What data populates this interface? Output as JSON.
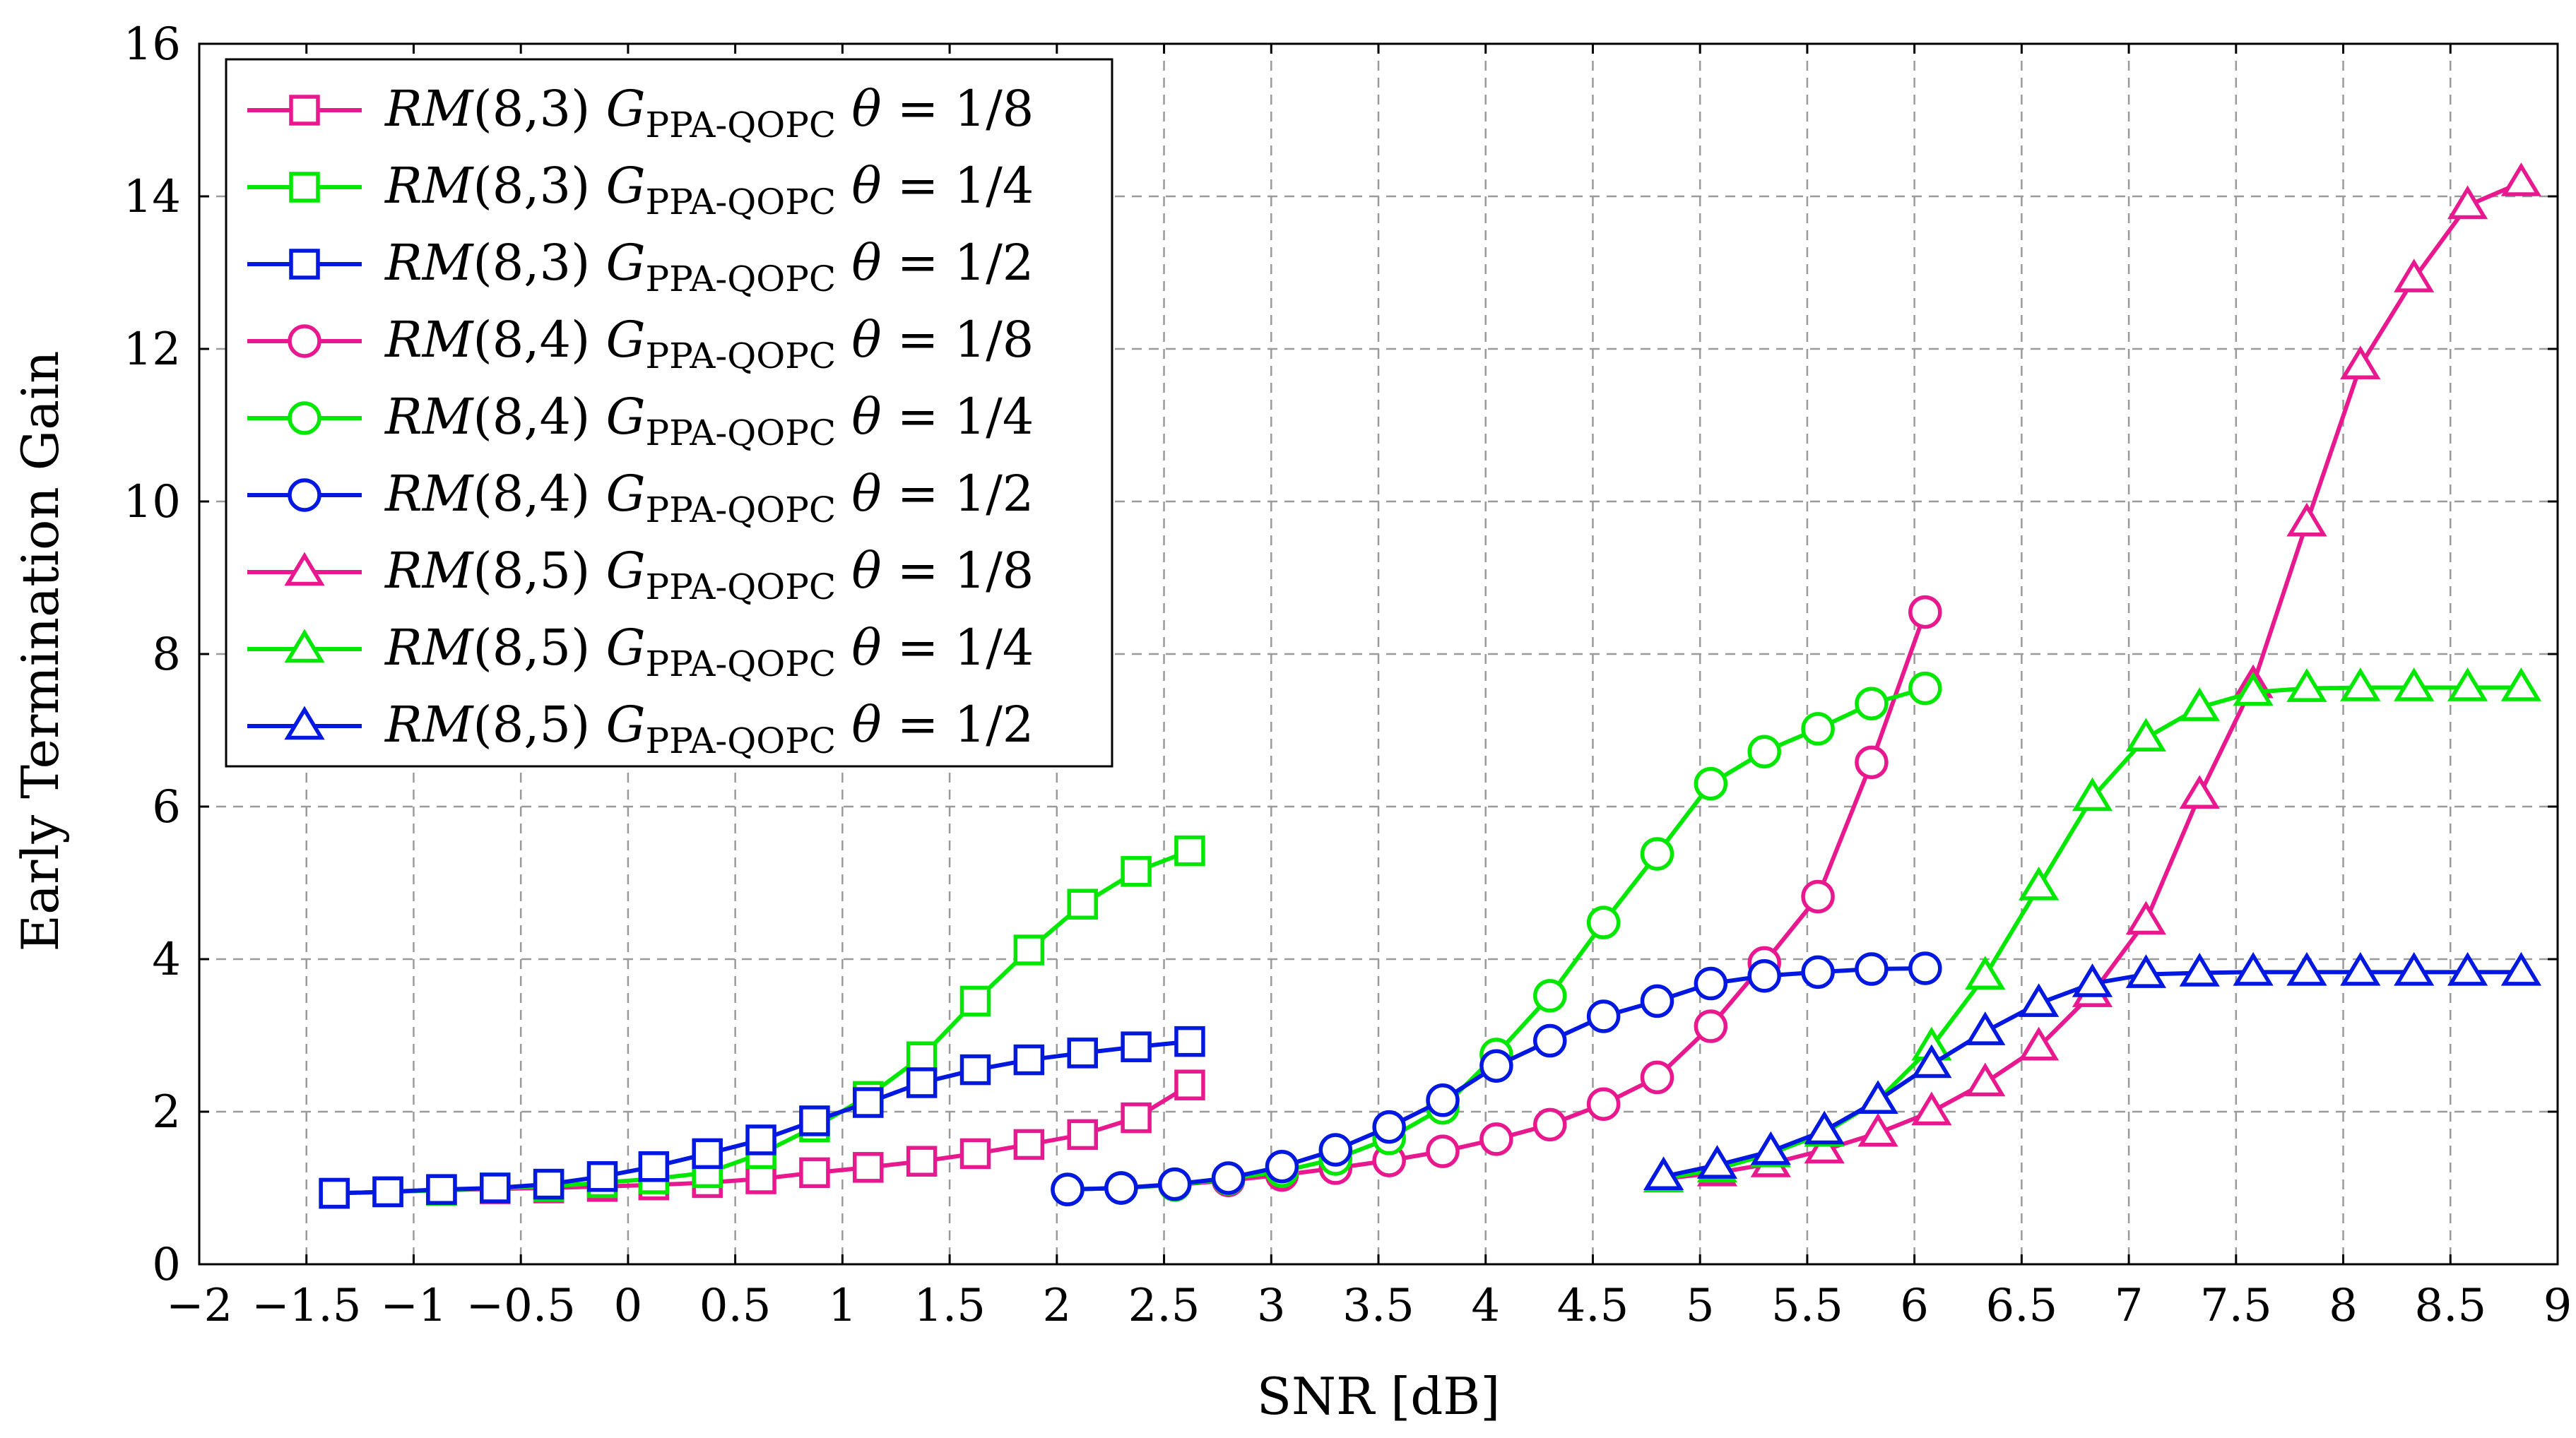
{
  "chart_data": {
    "type": "line",
    "title": "",
    "xlabel": "SNR [dB]",
    "ylabel": "Early Termination Gain",
    "xlim": [
      -2,
      9
    ],
    "ylim": [
      0,
      16
    ],
    "xticks": [
      -2,
      -1.5,
      -1,
      -0.5,
      0,
      0.5,
      1,
      1.5,
      2,
      2.5,
      3,
      3.5,
      4,
      4.5,
      5,
      5.5,
      6,
      6.5,
      7,
      7.5,
      8,
      8.5,
      9
    ],
    "xtick_labels": [
      "−2",
      "−1.5",
      "−1",
      "−0.5",
      "0",
      "0.5",
      "1",
      "1.5",
      "2",
      "2.5",
      "3",
      "3.5",
      "4",
      "4.5",
      "5",
      "5.5",
      "6",
      "6.5",
      "7",
      "7.5",
      "8",
      "8.5",
      "9"
    ],
    "yticks": [
      0,
      2,
      4,
      6,
      8,
      10,
      12,
      14,
      16
    ],
    "ytick_labels": [
      "0",
      "2",
      "4",
      "6",
      "8",
      "10",
      "12",
      "14",
      "16"
    ],
    "grid": true,
    "legend_position": "top-left",
    "colors": {
      "pink": "#e8188f",
      "green": "#00e800",
      "blue": "#0018e0"
    },
    "series": [
      {
        "name": "RM(8,3) G_PPA-QOPC θ = 1/8",
        "code": "(8,3)",
        "theta": "1/8",
        "color": "#e8188f",
        "marker": "square",
        "x": [
          -1.37,
          -1.12,
          -0.87,
          -0.62,
          -0.37,
          -0.12,
          0.12,
          0.37,
          0.62,
          0.87,
          1.12,
          1.37,
          1.62,
          1.87,
          2.12,
          2.37,
          2.62
        ],
        "y": [
          0.93,
          0.95,
          0.97,
          0.99,
          1.0,
          1.02,
          1.04,
          1.07,
          1.12,
          1.2,
          1.27,
          1.35,
          1.45,
          1.57,
          1.7,
          1.92,
          2.35
        ]
      },
      {
        "name": "RM(8,3) G_PPA-QOPC θ = 1/4",
        "code": "(8,3)",
        "theta": "1/4",
        "color": "#00e800",
        "marker": "square",
        "x": [
          -1.37,
          -1.12,
          -0.87,
          -0.62,
          -0.37,
          -0.12,
          0.12,
          0.37,
          0.62,
          0.87,
          1.12,
          1.37,
          1.62,
          1.87,
          2.12,
          2.37,
          2.62
        ],
        "y": [
          0.93,
          0.95,
          0.97,
          1.0,
          1.02,
          1.07,
          1.12,
          1.2,
          1.45,
          1.8,
          2.2,
          2.72,
          3.45,
          4.12,
          4.72,
          5.15,
          5.42
        ]
      },
      {
        "name": "RM(8,3) G_PPA-QOPC θ = 1/2",
        "code": "(8,3)",
        "theta": "1/2",
        "color": "#0018e0",
        "marker": "square",
        "x": [
          -1.37,
          -1.12,
          -0.87,
          -0.62,
          -0.37,
          -0.12,
          0.12,
          0.37,
          0.62,
          0.87,
          1.12,
          1.37,
          1.62,
          1.87,
          2.12,
          2.37,
          2.62
        ],
        "y": [
          0.93,
          0.95,
          0.98,
          1.0,
          1.05,
          1.15,
          1.28,
          1.45,
          1.63,
          1.88,
          2.12,
          2.38,
          2.55,
          2.68,
          2.77,
          2.85,
          2.92
        ]
      },
      {
        "name": "RM(8,4) G_PPA-QOPC θ = 1/8",
        "code": "(8,4)",
        "theta": "1/8",
        "color": "#e8188f",
        "marker": "circle",
        "x": [
          2.05,
          2.3,
          2.55,
          2.8,
          3.05,
          3.3,
          3.55,
          3.8,
          4.05,
          4.3,
          4.55,
          4.8,
          5.05,
          5.3,
          5.55,
          5.8,
          6.05
        ],
        "y": [
          0.98,
          1.0,
          1.04,
          1.1,
          1.17,
          1.26,
          1.36,
          1.48,
          1.64,
          1.83,
          2.1,
          2.45,
          3.12,
          3.95,
          4.82,
          6.58,
          8.55
        ]
      },
      {
        "name": "RM(8,4) G_PPA-QOPC θ = 1/4",
        "code": "(8,4)",
        "theta": "1/4",
        "color": "#00e800",
        "marker": "circle",
        "x": [
          2.05,
          2.3,
          2.55,
          2.8,
          3.05,
          3.3,
          3.55,
          3.8,
          4.05,
          4.3,
          4.55,
          4.8,
          5.05,
          5.3,
          5.55,
          5.8,
          6.05
        ],
        "y": [
          0.98,
          1.0,
          1.04,
          1.12,
          1.22,
          1.38,
          1.65,
          2.05,
          2.75,
          3.52,
          4.48,
          5.38,
          6.3,
          6.72,
          7.02,
          7.35,
          7.55
        ]
      },
      {
        "name": "RM(8,4) G_PPA-QOPC θ = 1/2",
        "code": "(8,4)",
        "theta": "1/2",
        "color": "#0018e0",
        "marker": "circle",
        "x": [
          2.05,
          2.3,
          2.55,
          2.8,
          3.05,
          3.3,
          3.55,
          3.8,
          4.05,
          4.3,
          4.55,
          4.8,
          5.05,
          5.3,
          5.55,
          5.8,
          6.05
        ],
        "y": [
          0.98,
          1.0,
          1.05,
          1.13,
          1.28,
          1.5,
          1.8,
          2.15,
          2.6,
          2.93,
          3.25,
          3.45,
          3.68,
          3.78,
          3.83,
          3.87,
          3.88
        ]
      },
      {
        "name": "RM(8,5) G_PPA-QOPC θ = 1/8",
        "code": "(8,5)",
        "theta": "1/8",
        "color": "#e8188f",
        "marker": "triangle",
        "x": [
          4.83,
          5.08,
          5.33,
          5.58,
          5.83,
          6.08,
          6.33,
          6.58,
          6.83,
          7.08,
          7.33,
          7.58,
          7.83,
          8.08,
          8.33,
          8.58,
          8.83
        ],
        "y": [
          1.12,
          1.2,
          1.32,
          1.5,
          1.72,
          2.0,
          2.38,
          2.85,
          3.55,
          4.5,
          6.15,
          7.6,
          9.72,
          11.78,
          12.92,
          13.88,
          14.18
        ]
      },
      {
        "name": "RM(8,5) G_PPA-QOPC θ = 1/4",
        "code": "(8,5)",
        "theta": "1/4",
        "color": "#00e800",
        "marker": "triangle",
        "x": [
          4.83,
          5.08,
          5.33,
          5.58,
          5.83,
          6.08,
          6.33,
          6.58,
          6.83,
          7.08,
          7.33,
          7.58,
          7.83,
          8.08,
          8.33,
          8.58,
          8.83
        ],
        "y": [
          1.12,
          1.25,
          1.45,
          1.72,
          2.15,
          2.85,
          3.78,
          4.95,
          6.12,
          6.9,
          7.3,
          7.5,
          7.55,
          7.56,
          7.56,
          7.56,
          7.56
        ]
      },
      {
        "name": "RM(8,5) G_PPA-QOPC θ = 1/2",
        "code": "(8,5)",
        "theta": "1/2",
        "color": "#0018e0",
        "marker": "triangle",
        "x": [
          4.83,
          5.08,
          5.33,
          5.58,
          5.83,
          6.08,
          6.33,
          6.58,
          6.83,
          7.08,
          7.33,
          7.58,
          7.83,
          8.08,
          8.33,
          8.58,
          8.83
        ],
        "y": [
          1.15,
          1.3,
          1.48,
          1.75,
          2.15,
          2.62,
          3.05,
          3.42,
          3.68,
          3.8,
          3.82,
          3.83,
          3.83,
          3.83,
          3.83,
          3.83,
          3.83
        ]
      }
    ]
  }
}
